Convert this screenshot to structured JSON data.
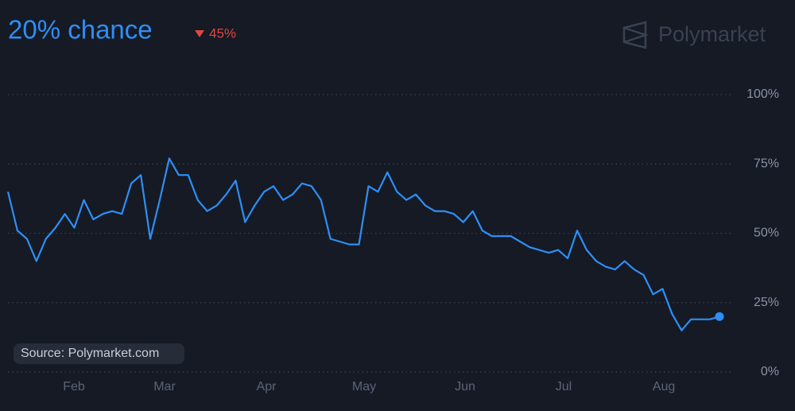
{
  "chart_data": {
    "type": "line",
    "title": "20% chance",
    "change": "45%",
    "brand": "Polymarket",
    "source": "Source: Polymarket.com",
    "xtick_labels": [
      "Feb",
      "Mar",
      "Apr",
      "May",
      "Jun",
      "Jul",
      "Aug"
    ],
    "ylim": [
      0,
      100
    ],
    "yticks": [
      {
        "value": 0,
        "label": "0%"
      },
      {
        "value": 25,
        "label": "25%"
      },
      {
        "value": 50,
        "label": "50%"
      },
      {
        "value": 75,
        "label": "75%"
      },
      {
        "value": 100,
        "label": "100%"
      }
    ],
    "grid": true,
    "series": [
      {
        "color": "#2e8ff5",
        "values": [
          65,
          51,
          48,
          40,
          48,
          52,
          57,
          52,
          62,
          55,
          57,
          58,
          57,
          68,
          71,
          48,
          62,
          77,
          71,
          71,
          62,
          58,
          60,
          64,
          69,
          54,
          60,
          65,
          67,
          62,
          64,
          68,
          67,
          62,
          48,
          47,
          46,
          46,
          67,
          65,
          72,
          65,
          62,
          64,
          60,
          58,
          58,
          57,
          54,
          58,
          51,
          49,
          49,
          49,
          47,
          45,
          44,
          43,
          44,
          41,
          51,
          44,
          40,
          38,
          37,
          40,
          37,
          35,
          28,
          30,
          21,
          15,
          19,
          19,
          19,
          20
        ]
      }
    ]
  }
}
